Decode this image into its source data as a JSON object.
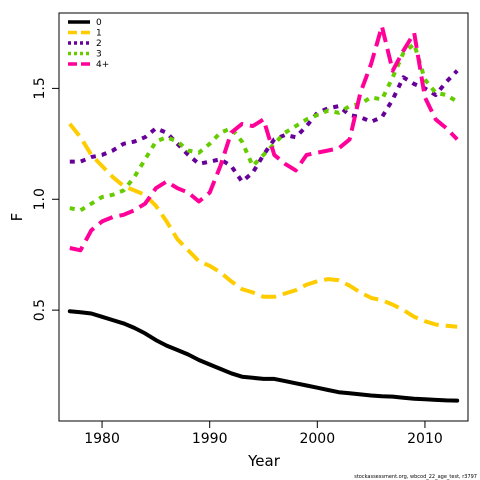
{
  "chart_data": {
    "type": "line",
    "xlabel": "Year",
    "ylabel": "F",
    "xlim": [
      1976,
      2014
    ],
    "ylim": [
      0.0,
      1.84
    ],
    "xticks": [
      1980,
      1990,
      2000,
      2010
    ],
    "yticks": [
      0.5,
      1.0,
      1.5
    ],
    "grid": false,
    "legend_position": "top-left",
    "footnote": "stockassessment.org, wbcod_22_age_test, r3797",
    "x": [
      1977,
      1978,
      1979,
      1980,
      1981,
      1982,
      1983,
      1984,
      1985,
      1986,
      1987,
      1988,
      1989,
      1990,
      1991,
      1992,
      1993,
      1994,
      1995,
      1996,
      1997,
      1998,
      1999,
      2000,
      2001,
      2002,
      2003,
      2004,
      2005,
      2006,
      2007,
      2008,
      2009,
      2010,
      2011,
      2012,
      2013
    ],
    "series": [
      {
        "name": "0",
        "color": "#000000",
        "dash": "solid",
        "values": [
          0.495,
          0.49,
          0.485,
          0.47,
          0.455,
          0.44,
          0.42,
          0.395,
          0.365,
          0.34,
          0.32,
          0.3,
          0.275,
          0.255,
          0.235,
          0.215,
          0.2,
          0.195,
          0.19,
          0.19,
          0.18,
          0.17,
          0.16,
          0.15,
          0.14,
          0.13,
          0.125,
          0.12,
          0.115,
          0.112,
          0.11,
          0.105,
          0.1,
          0.098,
          0.095,
          0.093,
          0.092
        ]
      },
      {
        "name": "1",
        "color": "#FFCC00",
        "dash": "dashed",
        "values": [
          1.34,
          1.28,
          1.2,
          1.15,
          1.1,
          1.06,
          1.04,
          1.02,
          0.97,
          0.9,
          0.82,
          0.77,
          0.72,
          0.7,
          0.67,
          0.63,
          0.595,
          0.58,
          0.56,
          0.56,
          0.575,
          0.59,
          0.615,
          0.63,
          0.64,
          0.635,
          0.61,
          0.58,
          0.555,
          0.545,
          0.525,
          0.5,
          0.47,
          0.45,
          0.435,
          0.43,
          0.425
        ]
      },
      {
        "name": "2",
        "color": "#660099",
        "dash": "dotted",
        "values": [
          1.17,
          1.17,
          1.19,
          1.2,
          1.22,
          1.25,
          1.26,
          1.28,
          1.32,
          1.3,
          1.25,
          1.2,
          1.16,
          1.17,
          1.18,
          1.15,
          1.08,
          1.12,
          1.2,
          1.27,
          1.29,
          1.28,
          1.33,
          1.39,
          1.41,
          1.42,
          1.38,
          1.37,
          1.35,
          1.37,
          1.45,
          1.55,
          1.52,
          1.5,
          1.47,
          1.53,
          1.58
        ]
      },
      {
        "name": "3",
        "color": "#66CC00",
        "dash": "dotted",
        "values": [
          0.96,
          0.95,
          0.98,
          1.01,
          1.02,
          1.04,
          1.1,
          1.18,
          1.26,
          1.28,
          1.26,
          1.22,
          1.21,
          1.25,
          1.3,
          1.32,
          1.26,
          1.15,
          1.2,
          1.25,
          1.3,
          1.33,
          1.36,
          1.38,
          1.4,
          1.39,
          1.42,
          1.43,
          1.46,
          1.45,
          1.55,
          1.66,
          1.7,
          1.54,
          1.48,
          1.47,
          1.44
        ]
      },
      {
        "name": "4+",
        "color": "#FF0099",
        "dash": "dashed",
        "values": [
          0.78,
          0.77,
          0.86,
          0.9,
          0.92,
          0.93,
          0.95,
          0.98,
          1.05,
          1.08,
          1.05,
          1.03,
          0.99,
          1.03,
          1.15,
          1.3,
          1.34,
          1.33,
          1.36,
          1.2,
          1.16,
          1.13,
          1.2,
          1.21,
          1.22,
          1.23,
          1.27,
          1.48,
          1.61,
          1.78,
          1.58,
          1.67,
          1.75,
          1.46,
          1.36,
          1.32,
          1.27
        ]
      }
    ]
  }
}
